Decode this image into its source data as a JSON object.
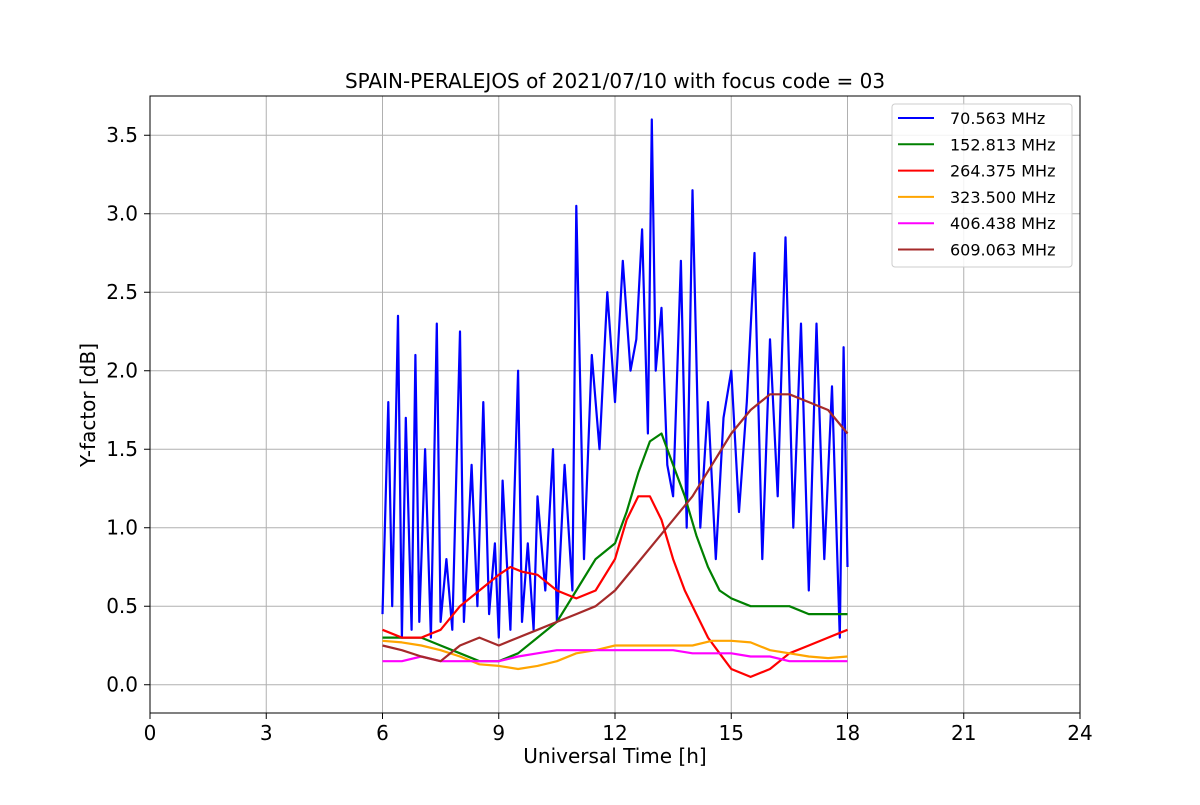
{
  "chart_data": {
    "type": "line",
    "title": "SPAIN-PERALEJOS of 2021/07/10 with focus code = 03",
    "xlabel": "Universal Time [h]",
    "ylabel": "Y-factor [dB]",
    "xlim": [
      0,
      24
    ],
    "ylim": [
      -0.18,
      3.75
    ],
    "xticks": [
      0,
      3,
      6,
      9,
      12,
      15,
      18,
      21,
      24
    ],
    "xtick_labels": [
      "0",
      "3",
      "6",
      "9",
      "12",
      "15",
      "18",
      "21",
      "24"
    ],
    "yticks": [
      0.0,
      0.5,
      1.0,
      1.5,
      2.0,
      2.5,
      3.0,
      3.5
    ],
    "ytick_labels": [
      "0.0",
      "0.5",
      "1.0",
      "1.5",
      "2.0",
      "2.5",
      "3.0",
      "3.5"
    ],
    "grid": true,
    "legend_position": "top-right",
    "series": [
      {
        "name": "70.563 MHz",
        "color": "#0000ff",
        "x": [
          6.0,
          6.15,
          6.25,
          6.4,
          6.5,
          6.6,
          6.75,
          6.85,
          6.95,
          7.1,
          7.25,
          7.4,
          7.5,
          7.65,
          7.8,
          8.0,
          8.1,
          8.3,
          8.45,
          8.6,
          8.75,
          8.9,
          9.0,
          9.1,
          9.3,
          9.5,
          9.6,
          9.75,
          9.9,
          10.0,
          10.2,
          10.4,
          10.5,
          10.7,
          10.9,
          11.0,
          11.2,
          11.4,
          11.6,
          11.8,
          12.0,
          12.2,
          12.4,
          12.55,
          12.7,
          12.85,
          12.95,
          13.05,
          13.2,
          13.35,
          13.5,
          13.7,
          13.85,
          14.0,
          14.2,
          14.4,
          14.6,
          14.8,
          15.0,
          15.2,
          15.4,
          15.6,
          15.8,
          16.0,
          16.2,
          16.4,
          16.6,
          16.8,
          17.0,
          17.2,
          17.4,
          17.6,
          17.8,
          17.9,
          18.0
        ],
        "y": [
          0.45,
          1.8,
          0.5,
          2.35,
          0.3,
          1.7,
          0.35,
          2.1,
          0.4,
          1.5,
          0.3,
          2.3,
          0.4,
          0.8,
          0.35,
          2.25,
          0.4,
          1.4,
          0.5,
          1.8,
          0.45,
          0.9,
          0.3,
          1.3,
          0.35,
          2.0,
          0.4,
          0.9,
          0.35,
          1.2,
          0.6,
          1.5,
          0.4,
          1.4,
          0.6,
          3.05,
          0.8,
          2.1,
          1.5,
          2.5,
          1.8,
          2.7,
          2.0,
          2.2,
          2.9,
          1.6,
          3.6,
          2.0,
          2.4,
          1.4,
          1.2,
          2.7,
          1.0,
          3.15,
          1.0,
          1.8,
          0.8,
          1.7,
          2.0,
          1.1,
          1.8,
          2.75,
          0.8,
          2.2,
          1.2,
          2.85,
          1.0,
          2.3,
          0.6,
          2.3,
          0.8,
          1.9,
          0.3,
          2.15,
          0.75
        ]
      },
      {
        "name": "152.813 MHz",
        "color": "#008000",
        "x": [
          6.0,
          6.5,
          7.0,
          7.5,
          8.0,
          8.5,
          9.0,
          9.5,
          10.0,
          10.5,
          11.0,
          11.5,
          12.0,
          12.3,
          12.6,
          12.9,
          13.2,
          13.5,
          13.8,
          14.1,
          14.4,
          14.7,
          15.0,
          15.5,
          16.0,
          16.5,
          17.0,
          17.5,
          18.0
        ],
        "y": [
          0.3,
          0.3,
          0.3,
          0.25,
          0.2,
          0.15,
          0.15,
          0.2,
          0.3,
          0.4,
          0.6,
          0.8,
          0.9,
          1.1,
          1.35,
          1.55,
          1.6,
          1.4,
          1.2,
          0.95,
          0.75,
          0.6,
          0.55,
          0.5,
          0.5,
          0.5,
          0.45,
          0.45,
          0.45
        ]
      },
      {
        "name": "264.375 MHz",
        "color": "#ff0000",
        "x": [
          6.0,
          6.5,
          7.0,
          7.5,
          8.0,
          8.5,
          9.0,
          9.3,
          9.6,
          10.0,
          10.5,
          11.0,
          11.5,
          12.0,
          12.3,
          12.6,
          12.9,
          13.2,
          13.5,
          13.8,
          14.1,
          14.4,
          14.7,
          15.0,
          15.5,
          16.0,
          16.5,
          17.0,
          17.5,
          18.0
        ],
        "y": [
          0.35,
          0.3,
          0.3,
          0.35,
          0.5,
          0.6,
          0.7,
          0.75,
          0.72,
          0.7,
          0.6,
          0.55,
          0.6,
          0.8,
          1.05,
          1.2,
          1.2,
          1.05,
          0.8,
          0.6,
          0.45,
          0.3,
          0.2,
          0.1,
          0.05,
          0.1,
          0.2,
          0.25,
          0.3,
          0.35
        ]
      },
      {
        "name": "323.500 MHz",
        "color": "#ffa500",
        "x": [
          6.0,
          6.5,
          7.0,
          7.5,
          8.0,
          8.5,
          9.0,
          9.5,
          10.0,
          10.5,
          11.0,
          11.5,
          12.0,
          12.5,
          13.0,
          13.5,
          14.0,
          14.5,
          15.0,
          15.5,
          16.0,
          16.5,
          17.0,
          17.5,
          18.0
        ],
        "y": [
          0.28,
          0.27,
          0.25,
          0.22,
          0.18,
          0.13,
          0.12,
          0.1,
          0.12,
          0.15,
          0.2,
          0.22,
          0.25,
          0.25,
          0.25,
          0.25,
          0.25,
          0.28,
          0.28,
          0.27,
          0.22,
          0.2,
          0.18,
          0.17,
          0.18
        ]
      },
      {
        "name": "406.438 MHz",
        "color": "#ff00ff",
        "x": [
          6.0,
          6.5,
          7.0,
          7.5,
          8.0,
          8.5,
          9.0,
          9.5,
          10.0,
          10.5,
          11.0,
          11.5,
          12.0,
          12.5,
          13.0,
          13.5,
          14.0,
          14.5,
          15.0,
          15.5,
          16.0,
          16.5,
          17.0,
          17.5,
          18.0
        ],
        "y": [
          0.15,
          0.15,
          0.18,
          0.15,
          0.15,
          0.15,
          0.15,
          0.18,
          0.2,
          0.22,
          0.22,
          0.22,
          0.22,
          0.22,
          0.22,
          0.22,
          0.2,
          0.2,
          0.2,
          0.18,
          0.18,
          0.15,
          0.15,
          0.15,
          0.15
        ]
      },
      {
        "name": "609.063 MHz",
        "color": "#a52a2a",
        "x": [
          6.0,
          6.5,
          7.0,
          7.5,
          8.0,
          8.5,
          9.0,
          9.5,
          10.0,
          10.5,
          11.0,
          11.5,
          12.0,
          12.5,
          13.0,
          13.5,
          14.0,
          14.5,
          15.0,
          15.5,
          16.0,
          16.5,
          17.0,
          17.5,
          18.0
        ],
        "y": [
          0.25,
          0.22,
          0.18,
          0.15,
          0.25,
          0.3,
          0.25,
          0.3,
          0.35,
          0.4,
          0.45,
          0.5,
          0.6,
          0.75,
          0.9,
          1.05,
          1.2,
          1.4,
          1.6,
          1.75,
          1.85,
          1.85,
          1.8,
          1.75,
          1.6
        ]
      }
    ]
  }
}
